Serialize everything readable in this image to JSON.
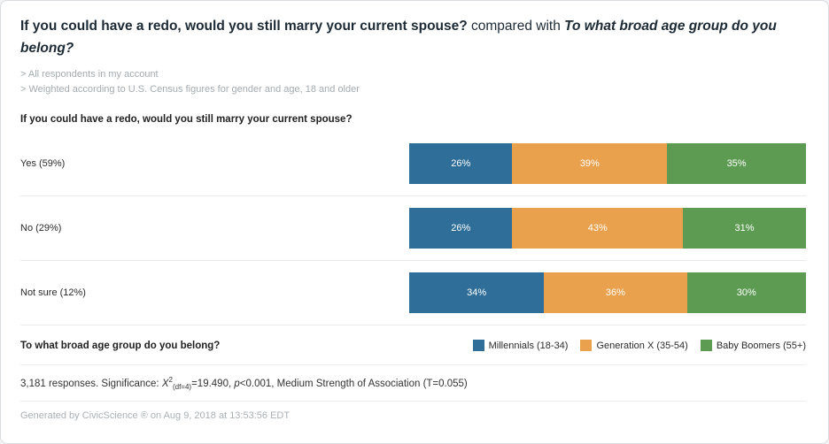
{
  "header": {
    "title_primary": "If you could have a redo, would you still marry your current spouse?",
    "title_connector": " compared with ",
    "title_secondary": "To what broad age group do you belong?",
    "filters": [
      "> All respondents in my account",
      "> Weighted according to U.S. Census figures for gender and age, 18 and older"
    ]
  },
  "chart_data": {
    "type": "bar",
    "variant": "horizontal-stacked-100",
    "question": "If you could have a redo, would you still marry your current spouse?",
    "categories": [
      "Yes (59%)",
      "No (29%)",
      "Not sure (12%)"
    ],
    "series": [
      {
        "name": "Millennials (18-34)",
        "color": "#2f6e99",
        "values": [
          26,
          26,
          34
        ]
      },
      {
        "name": "Generation X (35-54)",
        "color": "#e9a14d",
        "values": [
          39,
          43,
          36
        ]
      },
      {
        "name": "Baby Boomers (55+)",
        "color": "#5d9b52",
        "values": [
          35,
          31,
          30
        ]
      }
    ],
    "value_suffix": "%",
    "xlim": [
      0,
      100
    ],
    "grid": false,
    "legend_position": "bottom-right"
  },
  "legend": {
    "question": "To what broad age group do you belong?"
  },
  "stats": {
    "prefix": "3,181 responses. Significance: ",
    "chi": "X",
    "sup": "2",
    "sub": "(df=4)",
    "mid": "=19.490, ",
    "p_var": "p",
    "suffix": "<0.001, Medium Strength of Association (T=0.055)"
  },
  "footer": {
    "generated": "Generated by CivicScience ® on Aug 9, 2018 at 13:53:56 EDT"
  }
}
